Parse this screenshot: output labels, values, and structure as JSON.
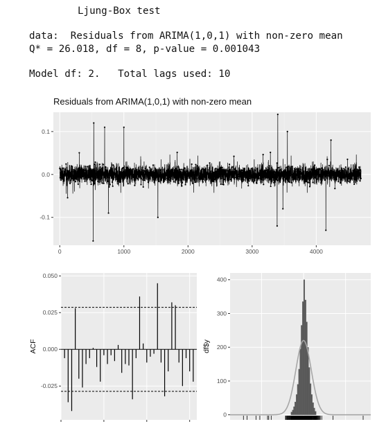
{
  "console": {
    "line1": "Ljung-Box test",
    "line2": "data:  Residuals from ARIMA(1,0,1) with non-zero mean",
    "line3": "Q* = 26.018, df = 8, p-value = 0.001043",
    "line4": "Model df: 2.   Total lags used: 10"
  },
  "chart_data": [
    {
      "type": "line",
      "title": "Residuals from ARIMA(1,0,1) with non-zero mean",
      "xlabel": "",
      "ylabel": "",
      "xlim": [
        -100,
        4850
      ],
      "ylim": [
        -0.165,
        0.145
      ],
      "x_ticks": [
        0,
        1000,
        2000,
        3000,
        4000
      ],
      "x_tick_labels": [
        "0",
        "1000",
        "2000",
        "3000",
        "4000"
      ],
      "y_ticks": [
        -0.1,
        0.0,
        0.1
      ],
      "y_tick_labels": [
        "-0.1",
        "0.0",
        "0.1"
      ],
      "n": 4700,
      "bursts": [
        {
          "x": 520,
          "value": -0.155
        },
        {
          "x": 530,
          "value": 0.12
        },
        {
          "x": 700,
          "value": 0.11
        },
        {
          "x": 760,
          "value": -0.09
        },
        {
          "x": 1000,
          "value": 0.11
        },
        {
          "x": 1530,
          "value": -0.1
        },
        {
          "x": 3400,
          "value": 0.14
        },
        {
          "x": 3390,
          "value": -0.12
        },
        {
          "x": 3480,
          "value": -0.08
        },
        {
          "x": 3550,
          "value": 0.1
        },
        {
          "x": 4150,
          "value": -0.13
        },
        {
          "x": 4230,
          "value": 0.08
        }
      ],
      "grid": true
    },
    {
      "type": "bar",
      "title": "",
      "xlabel": "",
      "ylabel": "ACF",
      "ylim": [
        -0.048,
        0.052
      ],
      "y_ticks": [
        -0.025,
        0.0,
        0.025,
        0.05
      ],
      "y_tick_labels": [
        "-0.025",
        "0.000",
        "0.025",
        "0.050"
      ],
      "lags": [
        1,
        2,
        3,
        4,
        5,
        6,
        7,
        8,
        9,
        10,
        11,
        12,
        13,
        14,
        15,
        16,
        17,
        18,
        19,
        20,
        21,
        22,
        23,
        24,
        25,
        26,
        27,
        28,
        29,
        30,
        31,
        32,
        33,
        34,
        35,
        36,
        37
      ],
      "values": [
        -0.006,
        -0.036,
        -0.042,
        0.028,
        -0.02,
        -0.026,
        -0.01,
        -0.006,
        0.001,
        -0.012,
        -0.022,
        -0.004,
        -0.01,
        -0.004,
        -0.008,
        0.003,
        -0.016,
        -0.01,
        -0.011,
        -0.034,
        -0.006,
        0.036,
        0.004,
        -0.009,
        -0.005,
        -0.003,
        0.045,
        -0.009,
        -0.032,
        -0.015,
        0.032,
        0.03,
        -0.009,
        -0.025,
        -0.006,
        -0.015,
        -0.022
      ],
      "confidence_bound": 0.0286,
      "grid": true
    },
    {
      "type": "bar",
      "title": "",
      "xlabel": "",
      "ylabel": "df$y",
      "xlim": [
        -0.175,
        0.16
      ],
      "ylim": [
        -15,
        420
      ],
      "y_ticks": [
        0,
        100,
        200,
        300,
        400
      ],
      "y_tick_labels": [
        "0",
        "100",
        "200",
        "300",
        "400"
      ],
      "bin_centers": [
        -0.0285,
        -0.0255,
        -0.0225,
        -0.0195,
        -0.0165,
        -0.0135,
        -0.0105,
        -0.0075,
        -0.0045,
        -0.0015,
        0.0015,
        0.0045,
        0.0075,
        0.0105,
        0.0135,
        0.0165,
        0.0195,
        0.0225,
        0.0255,
        0.0285
      ],
      "counts": [
        8,
        14,
        24,
        38,
        60,
        90,
        135,
        195,
        265,
        335,
        400,
        340,
        275,
        200,
        140,
        92,
        60,
        36,
        20,
        10
      ],
      "normal_curve": {
        "mean": 0.0,
        "sd": 0.0183,
        "peak": 220
      },
      "grid": true
    }
  ]
}
